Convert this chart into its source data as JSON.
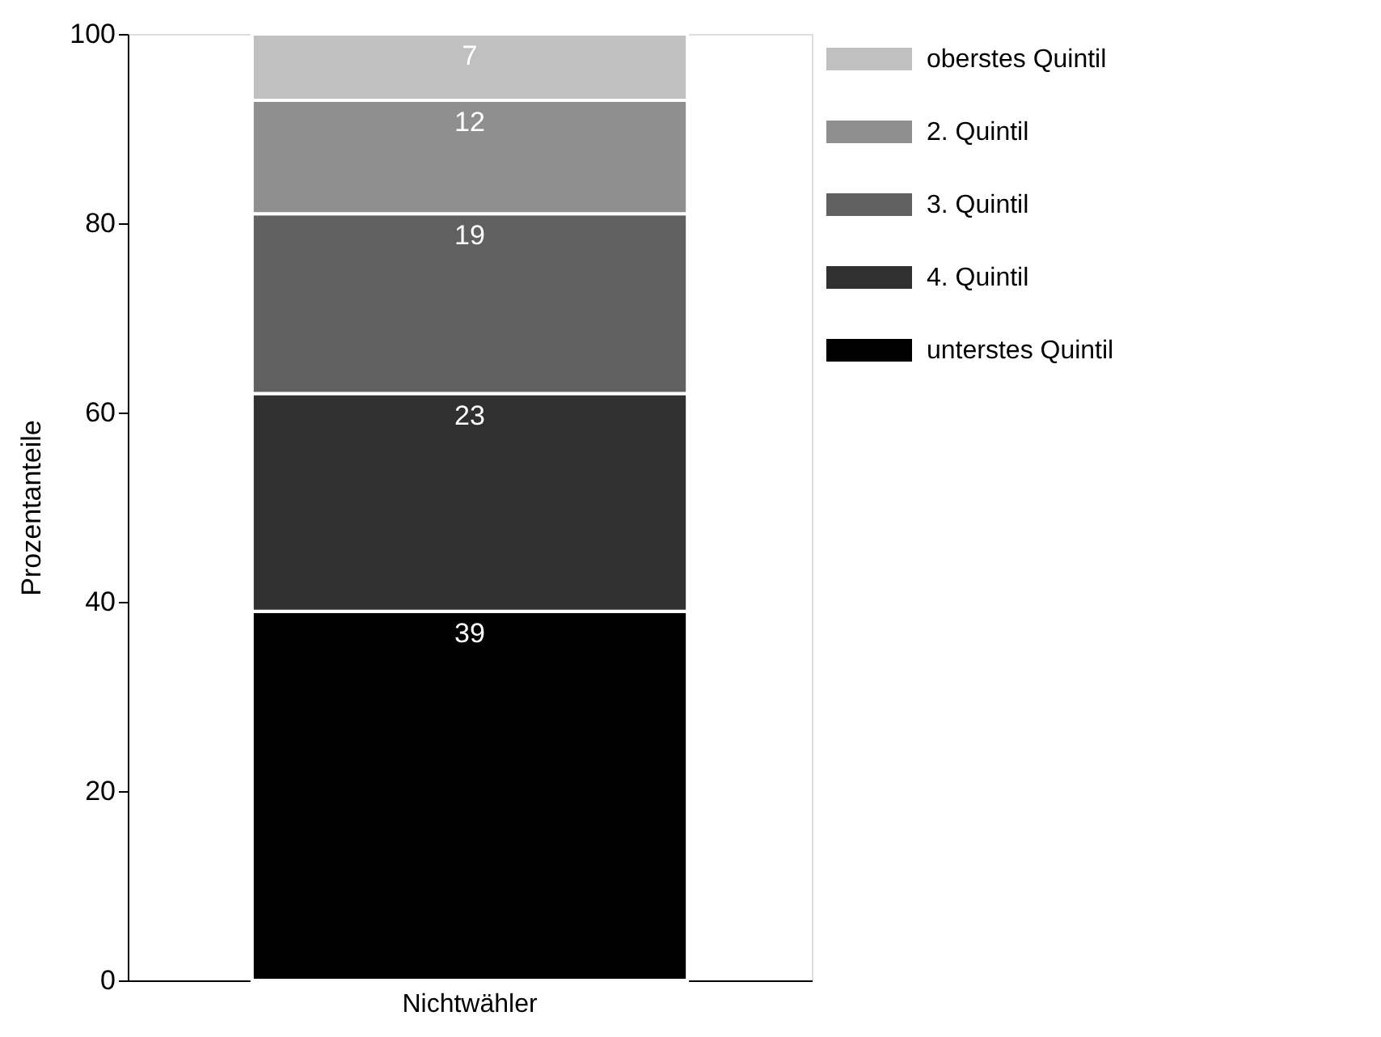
{
  "chart_data": {
    "type": "bar",
    "stacked": true,
    "categories": [
      "Nichtwähler"
    ],
    "ylabel": "Prozentanteile",
    "ylim": [
      0,
      100
    ],
    "yticks": [
      0,
      20,
      40,
      60,
      80,
      100
    ],
    "grid": false,
    "legend": "right",
    "data_labels": true,
    "series": [
      {
        "name": "unterstes Quintil",
        "color": "#000000",
        "values": [
          39
        ]
      },
      {
        "name": "4. Quintil",
        "color": "#303030",
        "values": [
          23
        ]
      },
      {
        "name": "3. Quintil",
        "color": "#606060",
        "values": [
          19
        ]
      },
      {
        "name": "2. Quintil",
        "color": "#8f8f8f",
        "values": [
          12
        ]
      },
      {
        "name": "oberstes Quintil",
        "color": "#c0c0c0",
        "values": [
          7
        ]
      }
    ]
  }
}
